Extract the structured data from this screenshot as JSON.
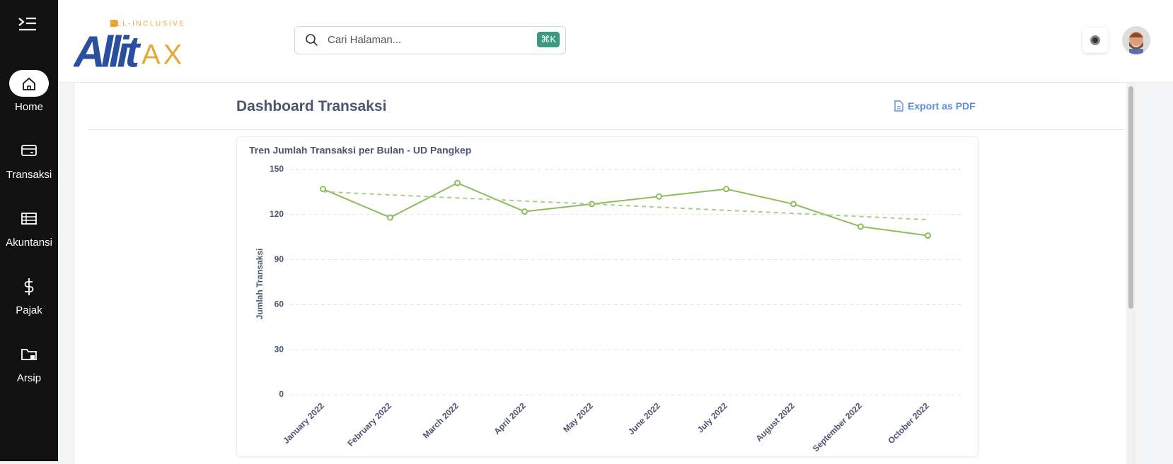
{
  "sidebar": {
    "items": [
      "Home",
      "Transaksi",
      "Akuntansi",
      "Pajak",
      "Arsip"
    ]
  },
  "header": {
    "logo_tagline": "ALL-INCLUSIVE",
    "logo_main": "Allit",
    "logo_suffix": "AX",
    "search_placeholder": "Cari Halaman...",
    "search_shortcut": "⌘K"
  },
  "page": {
    "title": "Dashboard Transaksi",
    "export": "Export as PDF"
  },
  "chart_data": {
    "type": "line",
    "title": "Tren Jumlah Transaksi per Bulan - UD Pangkep",
    "y_label": "Jumlah Transaksi",
    "categories": [
      "January 2022",
      "February 2022",
      "March 2022",
      "April 2022",
      "May 2022",
      "June 2022",
      "July 2022",
      "August 2022",
      "September 2022",
      "October 2022"
    ],
    "series": [
      {
        "color": "#8bbd5a",
        "dashed": false,
        "markers": true,
        "values": [
          137,
          118,
          141,
          122,
          127,
          132,
          137,
          127,
          112,
          106
        ]
      },
      {
        "color": "#a9d08a",
        "dashed": true,
        "markers": false,
        "values": [
          135.2,
          133.1,
          131.1,
          129.0,
          127.0,
          124.9,
          122.8,
          120.8,
          118.7,
          116.6
        ]
      }
    ],
    "ylim": [
      0,
      150
    ],
    "yticks": [
      0,
      30,
      60,
      90,
      120,
      150
    ],
    "grid": true
  }
}
